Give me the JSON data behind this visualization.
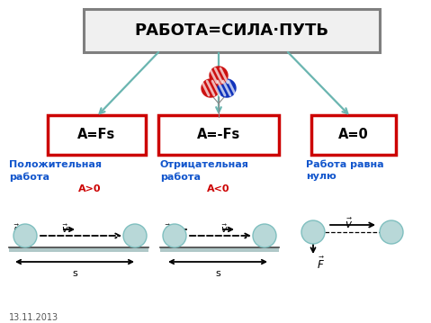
{
  "title": "РАБОТА=СИЛА·ПУТЬ",
  "box1": "A=Fs",
  "box2": "A=-Fs",
  "box3": "A=0",
  "label1_line1": "Положительная",
  "label1_line2": "работа",
  "label2_line1": "Отрицательная",
  "label2_line2": "работа",
  "label3_line1": "Работа равна",
  "label3_line2": "нулю",
  "annot1": "A>0",
  "annot2": "A<0",
  "date": "13.11.2013",
  "bg_color": "#ffffff",
  "title_border_color": "#7f7f7f",
  "box_border_color": "#cc0000",
  "blue_text_color": "#1155cc",
  "red_text_color": "#cc0000",
  "arrow_color": "#6ab5b0",
  "black": "#000000",
  "ground_color": "#b0c8c8",
  "ball_face": "#b8d8d8",
  "ball_edge": "#7fbfbf"
}
